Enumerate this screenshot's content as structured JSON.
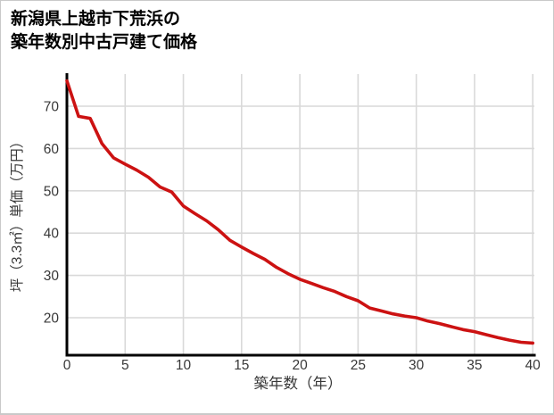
{
  "window": {
    "background": "#ffffff",
    "border_color": "#c9c9c9"
  },
  "chart_data": {
    "type": "line",
    "title_lines": [
      "新潟県上越市下荒浜の",
      "築年数別中古戸建て価格"
    ],
    "xlabel": "築年数（年）",
    "ylabel": "坪（3.3㎡）単価（万円）",
    "x": [
      0,
      1,
      2,
      3,
      4,
      5,
      6,
      7,
      8,
      9,
      10,
      11,
      12,
      13,
      14,
      15,
      16,
      17,
      18,
      19,
      20,
      21,
      22,
      23,
      24,
      25,
      26,
      27,
      28,
      29,
      30,
      31,
      32,
      33,
      34,
      35,
      36,
      37,
      38,
      39,
      40
    ],
    "values": [
      76,
      67.6,
      67.1,
      61.2,
      57.8,
      56.3,
      54.9,
      53.2,
      50.9,
      49.7,
      46.4,
      44.6,
      42.9,
      40.8,
      38.3,
      36.7,
      35.2,
      33.8,
      31.9,
      30.4,
      29.1,
      28.1,
      27.1,
      26.2,
      25.0,
      24.0,
      22.3,
      21.6,
      20.9,
      20.4,
      20.0,
      19.2,
      18.6,
      17.9,
      17.2,
      16.7,
      16.0,
      15.3,
      14.7,
      14.2,
      14.0
    ],
    "xticks": [
      0,
      5,
      10,
      15,
      20,
      25,
      30,
      35,
      40
    ],
    "yticks": [
      20,
      30,
      40,
      50,
      60,
      70
    ],
    "xlim": [
      0,
      40
    ],
    "ylim": [
      11.5,
      77.6
    ],
    "grid": true,
    "legend": "none",
    "line_color": "#cc1212",
    "axis_color": "#000000",
    "grid_color": "#d9d9d9",
    "tick_label_color": "#383838",
    "title_color": "#000000"
  }
}
